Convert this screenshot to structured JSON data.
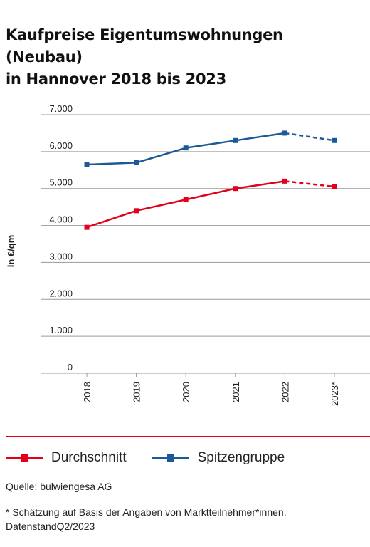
{
  "title_lines": [
    "Kaufpreise Eigentumswohnungen (Neubau)",
    "in Hannover 2018 bis 2023"
  ],
  "legend": [
    {
      "label": "Durchschnitt",
      "color": "#e2001a"
    },
    {
      "label": "Spitzengruppe",
      "color": "#1b5a96"
    }
  ],
  "source": "Quelle: bulwiengesa AG",
  "footnote": "* Schätzung auf Basis der Angaben von Marktteilnehmer*innen, DatenstandQ2/2023",
  "chart_data": {
    "type": "line",
    "ylabel": "in €/qm",
    "xlabel": "",
    "ylim": [
      0,
      7000
    ],
    "yticks": [
      0,
      1000,
      2000,
      3000,
      4000,
      5000,
      6000,
      7000
    ],
    "ytick_labels": [
      "0",
      "1.000",
      "2.000",
      "3.000",
      "4.000",
      "5.000",
      "6.000",
      "7.000"
    ],
    "categories": [
      "2018",
      "2019",
      "2020",
      "2021",
      "2022",
      "2023*"
    ],
    "grid": true,
    "estimated_from_index": 4,
    "series": [
      {
        "name": "Durchschnitt",
        "color": "#e2001a",
        "values": [
          3950,
          4400,
          4700,
          5000,
          5200,
          5050
        ]
      },
      {
        "name": "Spitzengruppe",
        "color": "#1b5a96",
        "values": [
          5650,
          5700,
          6100,
          6300,
          6500,
          6300
        ]
      }
    ]
  }
}
